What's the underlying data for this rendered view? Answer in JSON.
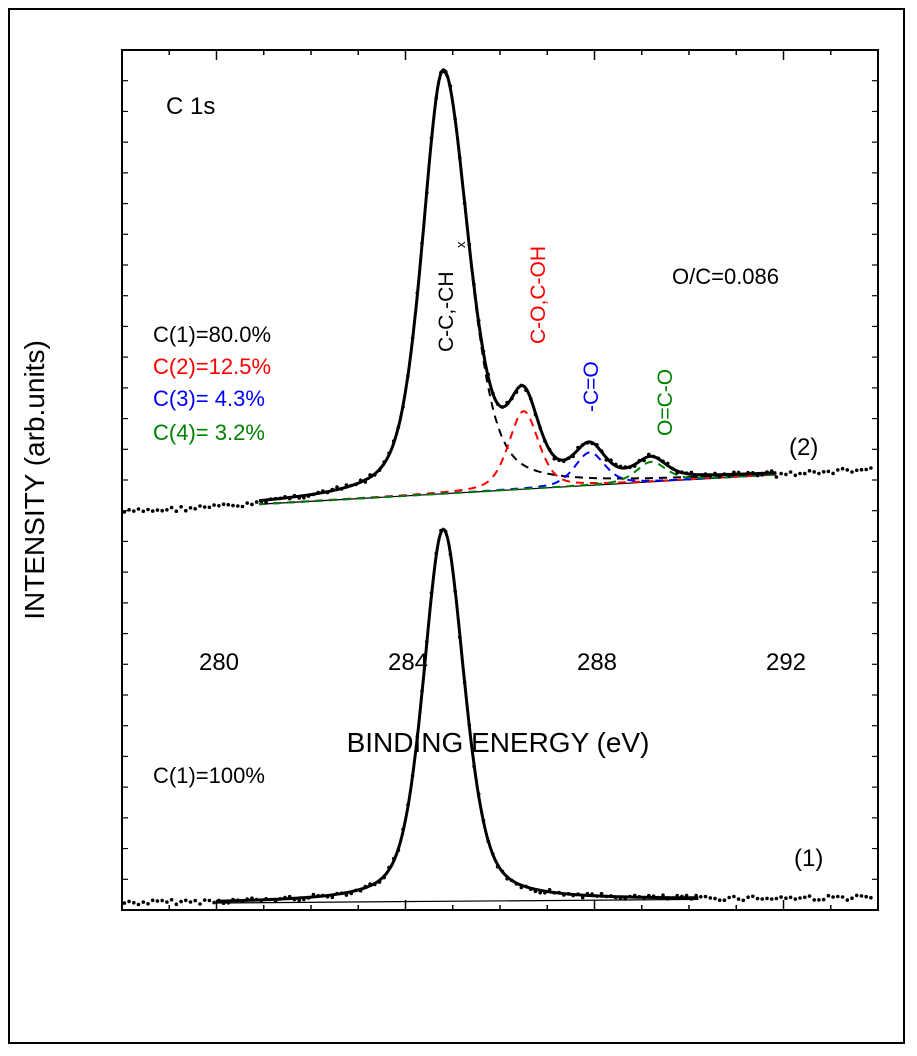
{
  "chart_data": {
    "type": "line",
    "title": "C 1s",
    "xlabel": "BINDING ENERGY (eV)",
    "ylabel": "INTENSITY (arb.units)",
    "xlim": [
      278,
      294
    ],
    "x_ticks": [
      "280",
      "284",
      "288",
      "292"
    ],
    "grid": false,
    "spectra": [
      {
        "name": "(1)",
        "composition": [
          "C(1)=100%"
        ],
        "peak_center_eV": 284.8,
        "series": [
          {
            "name": "data points",
            "style": "dots",
            "color": "#000000"
          },
          {
            "name": "fit envelope",
            "style": "solid",
            "color": "#000000"
          },
          {
            "name": "background",
            "style": "thin solid",
            "color": "#000000"
          }
        ]
      },
      {
        "name": "(2)",
        "ratio": "O/C=0.086",
        "composition": [
          {
            "label": "C(1)=80.0%",
            "color": "#000000"
          },
          {
            "label": "C(2)=12.5%",
            "color": "#ff0000"
          },
          {
            "label": "C(3)= 4.3%",
            "color": "#0000ff"
          },
          {
            "label": "C(4)= 3.2%",
            "color": "#008000"
          }
        ],
        "components": [
          {
            "name": "C-C,-CH",
            "subscript": "x",
            "center_eV": 284.8,
            "color": "#000000"
          },
          {
            "name": "C-O,C-OH",
            "center_eV": 286.5,
            "color": "#ff0000"
          },
          {
            "name": "-C=O",
            "center_eV": 287.9,
            "color": "#0000ff"
          },
          {
            "name": "O=C-O",
            "center_eV": 289.2,
            "color": "#008000"
          }
        ],
        "series": [
          {
            "name": "data points",
            "style": "dots",
            "color": "#000000"
          },
          {
            "name": "fit envelope",
            "style": "solid",
            "color": "#000000"
          },
          {
            "name": "component peaks",
            "style": "dashed"
          },
          {
            "name": "background",
            "style": "thin solid",
            "color": "#000000"
          }
        ]
      }
    ]
  }
}
